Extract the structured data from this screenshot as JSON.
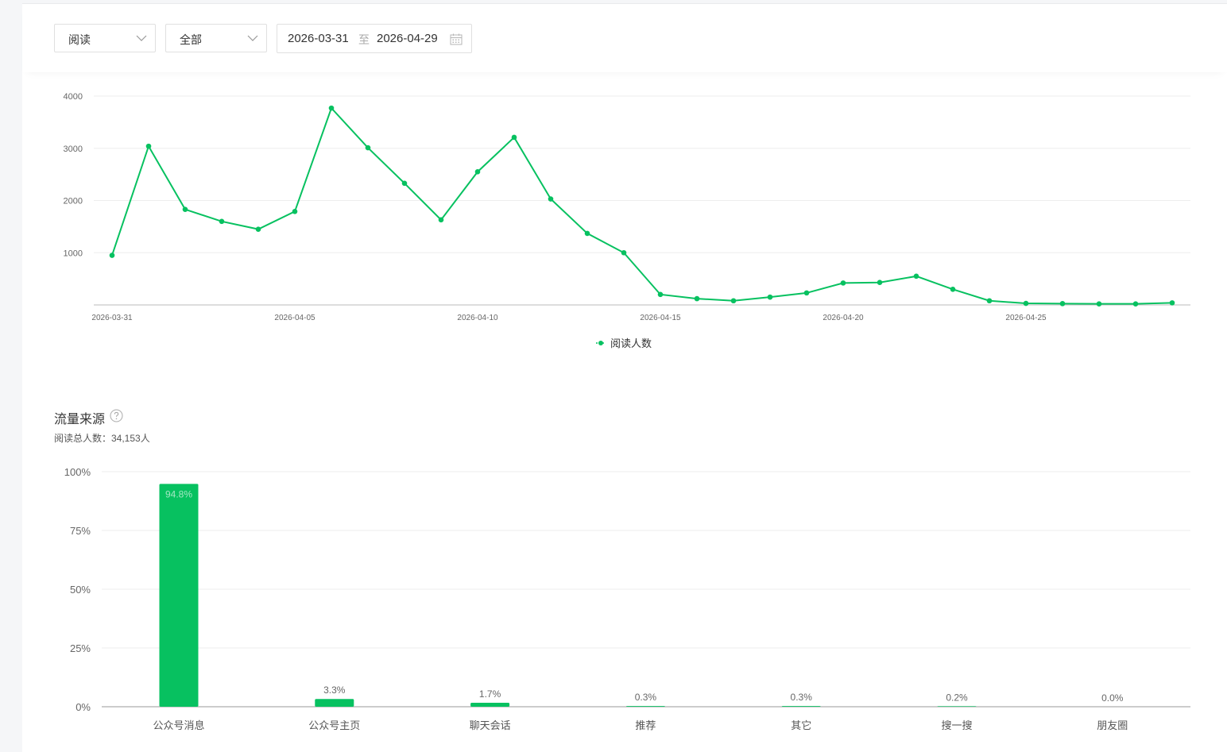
{
  "filters": {
    "metric_value": "阅读",
    "scope_value": "全部",
    "date_start": "2026-03-31",
    "date_sep": "至",
    "date_end": "2026-04-29"
  },
  "colors": {
    "accent": "#07c160",
    "grid": "#eeeeee",
    "axis": "#999999"
  },
  "icons": [
    "chevron-down-icon",
    "calendar-icon",
    "question-circle-icon"
  ],
  "traffic_section": {
    "title": "流量来源",
    "total_label": "阅读总人数：34,153人"
  },
  "chart_data": [
    {
      "type": "line",
      "x_tick_labels": [
        "2026-03-31",
        "2026-04-05",
        "2026-04-10",
        "2026-04-15",
        "2026-04-20",
        "2026-04-25"
      ],
      "y_tick_labels": [
        "1000",
        "2000",
        "3000",
        "4000"
      ],
      "ylim": [
        0,
        4000
      ],
      "grid": true,
      "legend": "bottom-center",
      "series": [
        {
          "name": "阅读人数",
          "x": [
            "2026-03-31",
            "2026-04-01",
            "2026-04-02",
            "2026-04-03",
            "2026-04-04",
            "2026-04-05",
            "2026-04-06",
            "2026-04-07",
            "2026-04-08",
            "2026-04-09",
            "2026-04-10",
            "2026-04-11",
            "2026-04-12",
            "2026-04-13",
            "2026-04-14",
            "2026-04-15",
            "2026-04-16",
            "2026-04-17",
            "2026-04-18",
            "2026-04-19",
            "2026-04-20",
            "2026-04-21",
            "2026-04-22",
            "2026-04-23",
            "2026-04-24",
            "2026-04-25",
            "2026-04-26",
            "2026-04-27",
            "2026-04-28",
            "2026-04-29"
          ],
          "values": [
            950,
            3040,
            1830,
            1600,
            1450,
            1790,
            3770,
            3010,
            2330,
            1630,
            2550,
            3210,
            2030,
            1370,
            1000,
            200,
            120,
            80,
            150,
            230,
            420,
            430,
            550,
            300,
            80,
            30,
            25,
            20,
            20,
            40
          ]
        }
      ]
    },
    {
      "type": "bar",
      "categories": [
        "公众号消息",
        "公众号主页",
        "聊天会话",
        "推荐",
        "其它",
        "搜一搜",
        "朋友圈"
      ],
      "values": [
        94.8,
        3.3,
        1.7,
        0.3,
        0.3,
        0.2,
        0.0
      ],
      "value_labels": [
        "94.8%",
        "3.3%",
        "1.7%",
        "0.3%",
        "0.3%",
        "0.2%",
        "0.0%"
      ],
      "y_tick_labels": [
        "0%",
        "25%",
        "50%",
        "75%",
        "100%"
      ],
      "ylim": [
        0,
        100
      ],
      "grid": true
    }
  ]
}
